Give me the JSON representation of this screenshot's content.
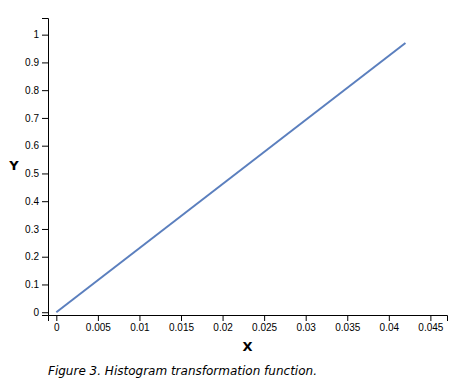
{
  "chart_data": {
    "type": "line",
    "x": [
      0,
      0.042
    ],
    "values": [
      0,
      0.97
    ],
    "color": "#5b7fbe",
    "xlabel": "X",
    "ylabel": "Y",
    "annotations": [
      "Figure 3. Histogram transformation function."
    ],
    "xlim": [
      -0.001,
      0.047
    ],
    "ylim": [
      -0.01,
      1.06
    ],
    "xticks": [
      0,
      0.005,
      0.01,
      0.015,
      0.02,
      0.025,
      0.03,
      0.035,
      0.04,
      0.045
    ],
    "yticks": [
      0,
      0.1,
      0.2,
      0.3,
      0.4,
      0.5,
      0.6,
      0.7,
      0.8,
      0.9,
      1
    ]
  }
}
